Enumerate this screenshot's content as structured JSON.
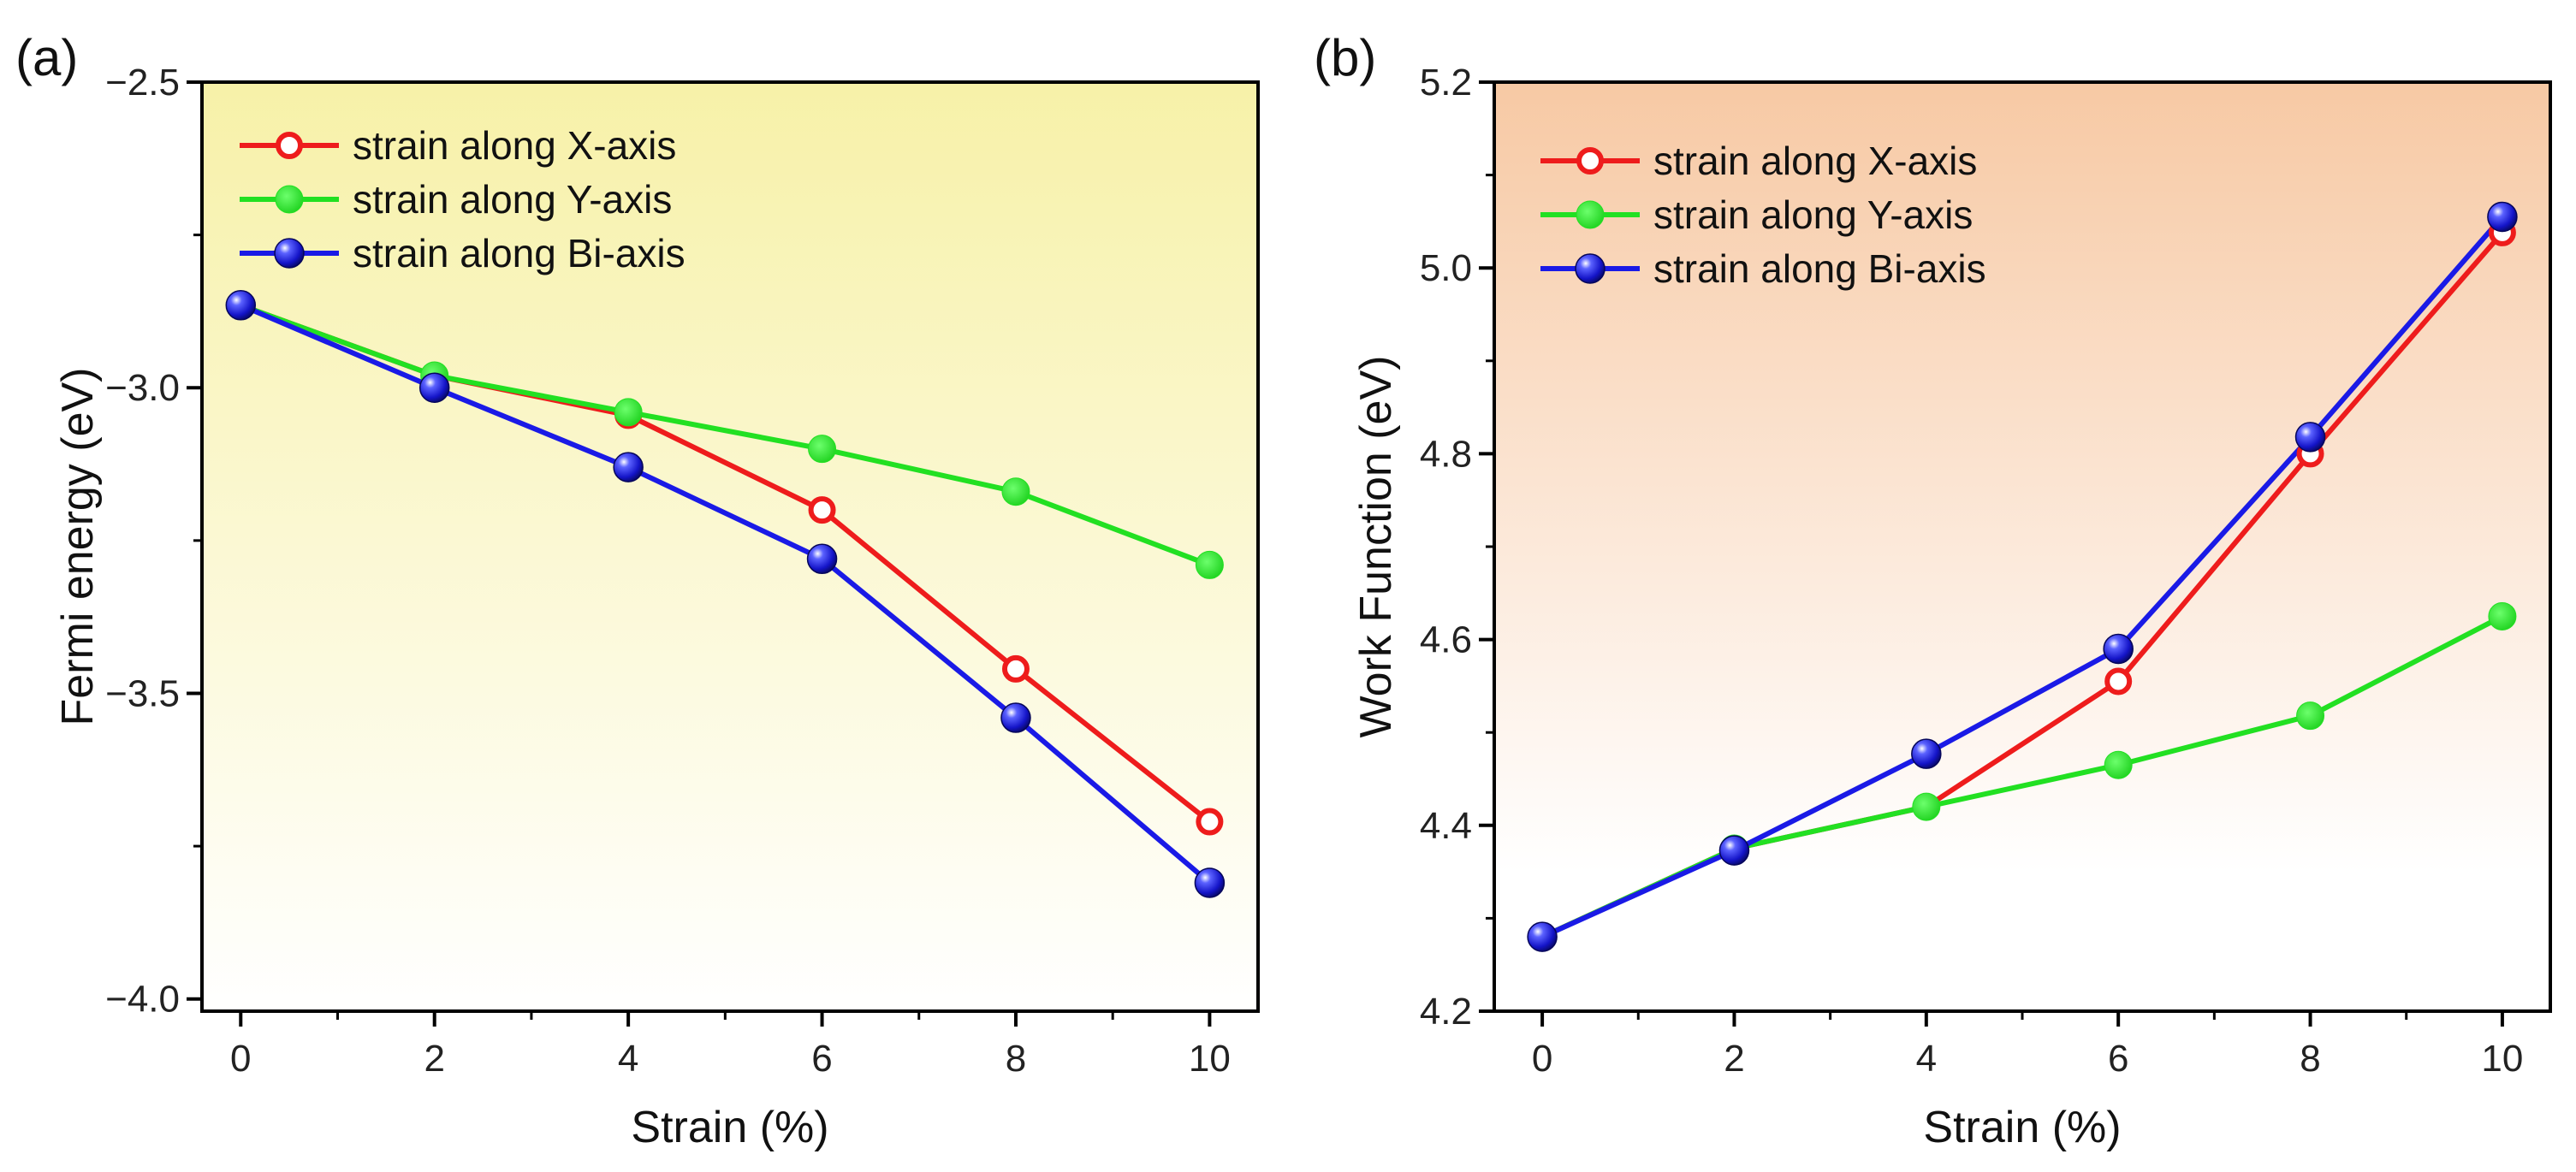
{
  "chart_data": [
    {
      "type": "line",
      "panel_label": "(a)",
      "title": "",
      "xlabel": "Strain (%)",
      "ylabel": "Fermi energy (eV)",
      "x": [
        0,
        2,
        4,
        6,
        8,
        10
      ],
      "xlim": [
        -0.4,
        10.5
      ],
      "ylim": [
        -4.02,
        -2.5
      ],
      "xticks": [
        0,
        2,
        4,
        6,
        8,
        10
      ],
      "xtick_labels": [
        "0",
        "2",
        "4",
        "6",
        "8",
        "10"
      ],
      "yticks": [
        -2.5,
        -3.0,
        -3.5,
        -4.0
      ],
      "ytick_labels": [
        "−2.5",
        "−3.0",
        "−3.5",
        "−4.0"
      ],
      "background_tint": "#f7f1a8",
      "legend_position": "top-left",
      "grid": false,
      "series": [
        {
          "name": "strain along X-axis",
          "color": "#ee1c1c",
          "marker": "open-circle",
          "values": [
            -2.865,
            -2.98,
            -3.045,
            -3.2,
            -3.46,
            -3.71
          ]
        },
        {
          "name": "strain along Y-axis",
          "color": "#22e022",
          "marker": "filled-circle",
          "values": [
            -2.865,
            -2.98,
            -3.04,
            -3.1,
            -3.17,
            -3.29
          ]
        },
        {
          "name": "strain along Bi-axis",
          "color": "#1a1ae6",
          "marker": "sphere",
          "values": [
            -2.865,
            -3.0,
            -3.13,
            -3.28,
            -3.54,
            -3.81
          ]
        }
      ]
    },
    {
      "type": "line",
      "panel_label": "(b)",
      "title": "",
      "xlabel": "Strain (%)",
      "ylabel": "Work Function (eV)",
      "x": [
        0,
        2,
        4,
        6,
        8,
        10
      ],
      "xlim": [
        -0.5,
        10.5
      ],
      "ylim": [
        4.2,
        5.2
      ],
      "xticks": [
        0,
        2,
        4,
        6,
        8,
        10
      ],
      "xtick_labels": [
        "0",
        "2",
        "4",
        "6",
        "8",
        "10"
      ],
      "yticks": [
        4.2,
        4.4,
        4.6,
        4.8,
        5.0,
        5.2
      ],
      "ytick_labels": [
        "4.2",
        "4.4",
        "4.6",
        "4.8",
        "5.0",
        "5.2"
      ],
      "background_tint": "#f7c9a4",
      "legend_position": "top-left",
      "grid": false,
      "series": [
        {
          "name": "strain along X-axis",
          "color": "#ee1c1c",
          "marker": "open-circle",
          "values": [
            4.28,
            4.375,
            4.42,
            4.555,
            4.8,
            5.038
          ]
        },
        {
          "name": "strain along Y-axis",
          "color": "#22e022",
          "marker": "filled-circle",
          "values": [
            4.28,
            4.375,
            4.42,
            4.465,
            4.518,
            4.625
          ]
        },
        {
          "name": "strain along Bi-axis",
          "color": "#1a1ae6",
          "marker": "sphere",
          "values": [
            4.28,
            4.373,
            4.477,
            4.59,
            4.818,
            5.055
          ]
        }
      ]
    }
  ]
}
